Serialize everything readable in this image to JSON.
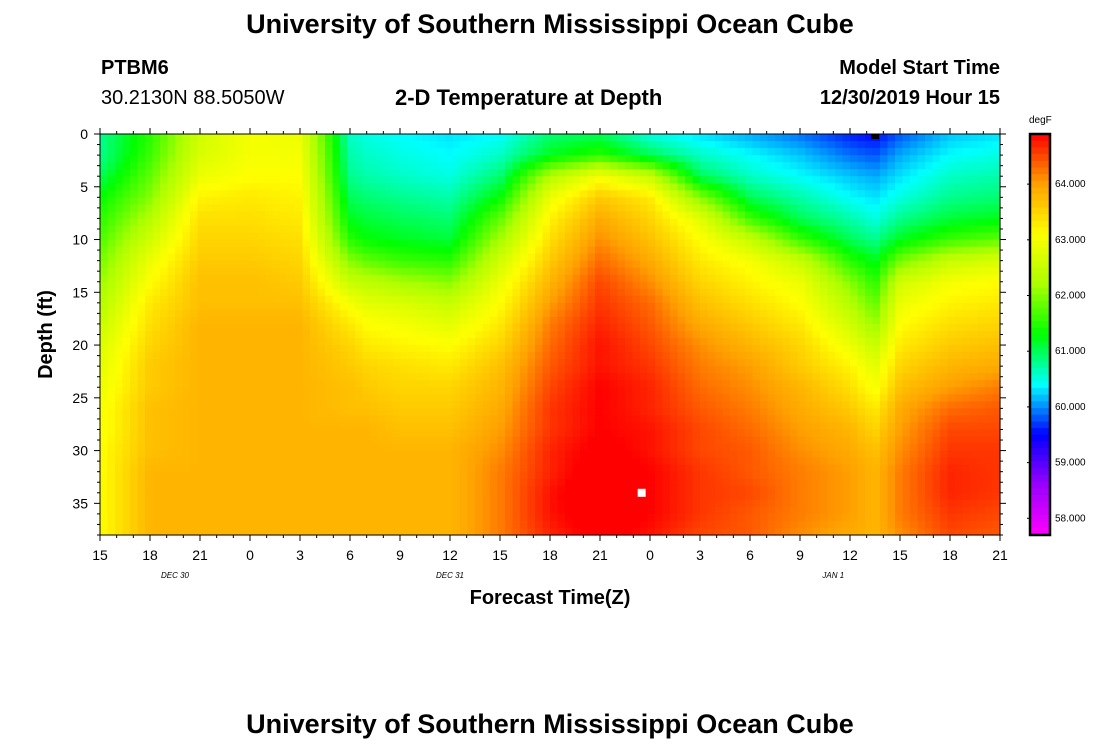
{
  "header": {
    "top_title": "University of Southern Mississippi Ocean Cube",
    "bottom_title": "University of Southern Mississippi Ocean Cube",
    "station_id": "PTBM6",
    "station_coords": "30.2130N 88.5050W",
    "plot_title": "2-D Temperature at Depth",
    "model_start_label": "Model Start Time",
    "model_start_value": "12/30/2019 Hour 15"
  },
  "chart_data": {
    "type": "heatmap",
    "title": "2-D Temperature at Depth",
    "xlabel": "Forecast Time(Z)",
    "ylabel": "Depth (ft)",
    "x_unit": "hours since model start (12/30/2019 15Z)",
    "xlim": [
      0,
      54
    ],
    "ylim": [
      38,
      0
    ],
    "x_ticks": [
      {
        "hour": 0,
        "label": "15"
      },
      {
        "hour": 3,
        "label": "18"
      },
      {
        "hour": 6,
        "label": "21"
      },
      {
        "hour": 9,
        "label": "0"
      },
      {
        "hour": 12,
        "label": "3"
      },
      {
        "hour": 15,
        "label": "6"
      },
      {
        "hour": 18,
        "label": "9"
      },
      {
        "hour": 21,
        "label": "12"
      },
      {
        "hour": 24,
        "label": "15"
      },
      {
        "hour": 27,
        "label": "18"
      },
      {
        "hour": 30,
        "label": "21"
      },
      {
        "hour": 33,
        "label": "0"
      },
      {
        "hour": 36,
        "label": "3"
      },
      {
        "hour": 39,
        "label": "6"
      },
      {
        "hour": 42,
        "label": "9"
      },
      {
        "hour": 45,
        "label": "12"
      },
      {
        "hour": 48,
        "label": "15"
      },
      {
        "hour": 51,
        "label": "18"
      },
      {
        "hour": 54,
        "label": "21"
      }
    ],
    "date_labels": [
      {
        "hour": 4.5,
        "label": "DEC 30"
      },
      {
        "hour": 21,
        "label": "DEC 31"
      },
      {
        "hour": 44,
        "label": "JAN 1"
      }
    ],
    "y_ticks": [
      0,
      5,
      10,
      15,
      20,
      25,
      30,
      35
    ],
    "colorbar": {
      "unit": "degF",
      "range": [
        57.7,
        64.9
      ],
      "tick_values": [
        58,
        59,
        60,
        61,
        62,
        63,
        64
      ],
      "tick_labels": [
        "58.000",
        "59.000",
        "60.000",
        "61.000",
        "62.000",
        "63.000",
        "64.000"
      ],
      "colormap": [
        "#ff00ff",
        "#9900ff",
        "#0000ff",
        "#00ffff",
        "#00ff00",
        "#aaff00",
        "#ffff00",
        "#ffa000",
        "#ff0000"
      ]
    },
    "min_marker": {
      "hour": 46.5,
      "depth": 0,
      "color": "#000000"
    },
    "max_marker": {
      "hour": 32.5,
      "depth": 34,
      "color": "#ffffff"
    },
    "time_hours": [
      0,
      3,
      6,
      9,
      12,
      15,
      16,
      18,
      21,
      24,
      27,
      30,
      33,
      36,
      39,
      42,
      45,
      46.5,
      48,
      51,
      54
    ],
    "depth_ft": [
      0,
      2,
      4,
      6,
      8,
      10,
      12,
      14,
      16,
      18,
      20,
      22,
      24,
      26,
      28,
      30,
      32,
      34,
      36,
      38
    ],
    "temperature_degF": [
      [
        60.8,
        61.5,
        62.6,
        63.0,
        62.9,
        60.6,
        60.5,
        60.4,
        60.3,
        60.4,
        60.9,
        61.0,
        60.5,
        60.3,
        60.1,
        59.9,
        59.6,
        59.5,
        59.8,
        60.2,
        60.3
      ],
      [
        60.8,
        61.6,
        62.7,
        63.0,
        63.0,
        60.7,
        60.6,
        60.5,
        60.4,
        60.6,
        61.2,
        61.5,
        61.0,
        60.6,
        60.4,
        60.2,
        59.9,
        59.8,
        60.1,
        60.4,
        60.5
      ],
      [
        61.0,
        61.8,
        62.9,
        63.1,
        63.1,
        60.8,
        60.7,
        60.6,
        60.5,
        60.9,
        62.3,
        63.0,
        62.5,
        61.0,
        60.6,
        60.4,
        60.2,
        60.1,
        60.3,
        60.6,
        60.7
      ],
      [
        61.3,
        62.0,
        63.2,
        63.3,
        63.2,
        61.0,
        60.9,
        60.8,
        60.7,
        61.3,
        62.9,
        63.6,
        63.3,
        62.0,
        61.0,
        60.7,
        60.4,
        60.3,
        60.5,
        60.8,
        60.9
      ],
      [
        61.5,
        62.3,
        63.4,
        63.4,
        63.3,
        61.2,
        61.1,
        61.0,
        60.9,
        61.8,
        63.2,
        63.9,
        63.5,
        62.8,
        61.6,
        61.0,
        60.7,
        60.5,
        60.8,
        61.1,
        61.2
      ],
      [
        61.7,
        62.6,
        63.5,
        63.5,
        63.4,
        61.5,
        61.3,
        61.2,
        61.1,
        62.2,
        63.4,
        64.1,
        63.7,
        63.1,
        62.5,
        61.6,
        61.0,
        60.8,
        61.2,
        61.6,
        61.8
      ],
      [
        61.9,
        62.9,
        63.6,
        63.6,
        63.5,
        62.0,
        61.8,
        61.6,
        61.5,
        62.6,
        63.6,
        64.3,
        63.9,
        63.3,
        63.0,
        62.5,
        61.5,
        61.2,
        61.9,
        62.5,
        62.7
      ],
      [
        62.1,
        63.1,
        63.7,
        63.7,
        63.6,
        62.5,
        62.4,
        62.2,
        62.0,
        62.9,
        63.8,
        64.5,
        64.1,
        63.5,
        63.2,
        62.9,
        62.0,
        61.5,
        62.6,
        63.0,
        63.1
      ],
      [
        62.3,
        63.3,
        63.7,
        63.7,
        63.7,
        63.0,
        62.8,
        62.7,
        62.5,
        63.1,
        64.0,
        64.6,
        64.3,
        63.7,
        63.4,
        63.1,
        62.3,
        61.8,
        62.9,
        63.2,
        63.3
      ],
      [
        62.5,
        63.4,
        63.8,
        63.8,
        63.8,
        63.3,
        63.1,
        63.0,
        62.8,
        63.3,
        64.2,
        64.7,
        64.4,
        63.9,
        63.6,
        63.3,
        62.6,
        62.1,
        63.1,
        63.4,
        63.5
      ],
      [
        62.7,
        63.5,
        63.8,
        63.8,
        63.8,
        63.5,
        63.3,
        63.2,
        63.1,
        63.5,
        64.3,
        64.8,
        64.5,
        64.1,
        63.8,
        63.5,
        62.9,
        62.5,
        63.3,
        63.6,
        63.7
      ],
      [
        62.8,
        63.6,
        63.8,
        63.8,
        63.8,
        63.6,
        63.5,
        63.4,
        63.3,
        63.7,
        64.4,
        64.8,
        64.6,
        64.2,
        64.0,
        63.6,
        63.2,
        62.8,
        63.5,
        63.8,
        63.9
      ],
      [
        62.9,
        63.6,
        63.8,
        63.8,
        63.8,
        63.7,
        63.6,
        63.5,
        63.5,
        63.8,
        64.5,
        64.9,
        64.7,
        64.3,
        64.1,
        63.8,
        63.4,
        63.0,
        63.7,
        64.0,
        64.2
      ],
      [
        63.0,
        63.7,
        63.8,
        63.8,
        63.8,
        63.7,
        63.7,
        63.6,
        63.6,
        63.9,
        64.6,
        64.9,
        64.7,
        64.4,
        64.2,
        63.9,
        63.6,
        63.3,
        63.9,
        64.3,
        64.4
      ],
      [
        63.0,
        63.7,
        63.8,
        63.8,
        63.8,
        63.8,
        63.8,
        63.7,
        63.7,
        64.0,
        64.6,
        64.9,
        64.8,
        64.5,
        64.3,
        64.0,
        63.8,
        63.5,
        64.0,
        64.5,
        64.5
      ],
      [
        63.1,
        63.7,
        63.8,
        63.8,
        63.8,
        63.8,
        63.8,
        63.8,
        63.8,
        64.1,
        64.7,
        65.0,
        64.8,
        64.5,
        64.4,
        64.1,
        63.9,
        63.7,
        64.1,
        64.6,
        64.6
      ],
      [
        63.1,
        63.8,
        63.8,
        63.8,
        63.8,
        63.8,
        63.8,
        63.8,
        63.8,
        64.2,
        64.7,
        65.1,
        64.9,
        64.6,
        64.4,
        64.2,
        64.0,
        63.8,
        64.2,
        64.7,
        64.6
      ],
      [
        63.1,
        63.8,
        63.8,
        63.8,
        63.8,
        63.8,
        63.8,
        63.8,
        63.8,
        64.2,
        64.8,
        65.2,
        64.9,
        64.6,
        64.5,
        64.2,
        64.0,
        63.8,
        64.2,
        64.7,
        64.6
      ],
      [
        63.1,
        63.8,
        63.8,
        63.8,
        63.8,
        63.8,
        63.8,
        63.8,
        63.8,
        64.2,
        64.8,
        65.1,
        64.9,
        64.6,
        64.4,
        64.2,
        64.0,
        63.8,
        64.2,
        64.6,
        64.5
      ],
      [
        63.1,
        63.8,
        63.8,
        63.8,
        63.8,
        63.8,
        63.8,
        63.8,
        63.8,
        64.2,
        64.7,
        65.0,
        64.8,
        64.5,
        64.4,
        64.1,
        63.9,
        63.8,
        64.1,
        64.5,
        64.4
      ]
    ]
  }
}
